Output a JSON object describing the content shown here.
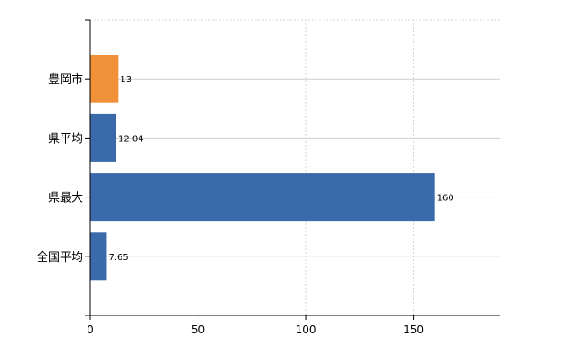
{
  "chart_data": {
    "type": "bar",
    "orientation": "horizontal",
    "categories": [
      "豊岡市",
      "県平均",
      "県最大",
      "全国平均"
    ],
    "values": [
      13,
      12.04,
      160,
      7.65
    ],
    "data_labels": [
      "13",
      "12.04",
      "160",
      "7.65"
    ],
    "bar_colors": [
      "#f0913a",
      "#3b6aaa",
      "#3b6aaa",
      "#3b6aaa"
    ],
    "xlim": [
      0,
      190
    ],
    "x_ticks": [
      0,
      50,
      100,
      150
    ],
    "x_tick_labels": [
      "0",
      "50",
      "100",
      "150"
    ],
    "title": "",
    "xlabel": "",
    "ylabel": "",
    "grid": true,
    "legend": "none"
  }
}
